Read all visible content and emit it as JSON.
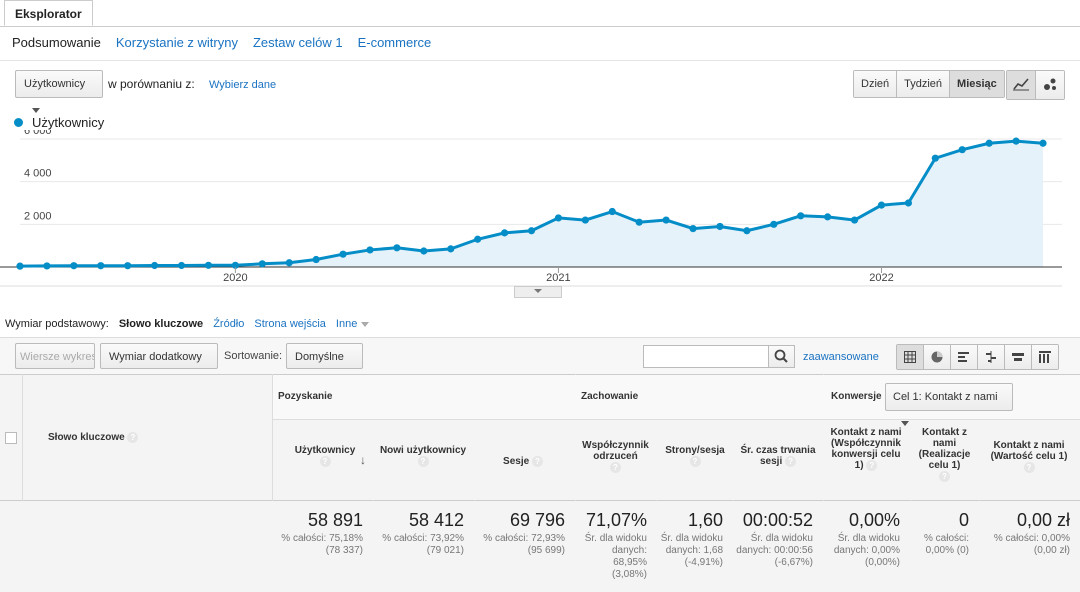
{
  "tab": {
    "label": "Eksplorator"
  },
  "subnav": [
    "Podsumowanie",
    "Korzystanie z witryny",
    "Zestaw celów 1",
    "E-commerce"
  ],
  "controls": {
    "metric_select": "Użytkownicy",
    "compare_label": "w porównaniu z:",
    "compare_link": "Wybierz dane",
    "periods": [
      "Dzień",
      "Tydzień",
      "Miesiąc"
    ],
    "active_period": "Miesiąc"
  },
  "colors": {
    "series": "#058dc7",
    "link": "#1a73c2"
  },
  "chart_data": {
    "type": "area",
    "legend": "Użytkownicy",
    "yticks": [
      "6 000",
      "4 000",
      "2 000"
    ],
    "ylim": [
      0,
      6000
    ],
    "xticks": [
      {
        "label": "2020",
        "index": 8
      },
      {
        "label": "2021",
        "index": 20
      },
      {
        "label": "2022",
        "index": 32
      }
    ],
    "values": [
      40,
      50,
      60,
      60,
      60,
      70,
      70,
      80,
      80,
      150,
      200,
      350,
      600,
      800,
      900,
      750,
      850,
      1300,
      1600,
      1700,
      2300,
      2200,
      2600,
      2100,
      2200,
      1800,
      1900,
      1700,
      2000,
      2400,
      2350,
      2200,
      2900,
      3000,
      5100,
      5500,
      5800,
      5900,
      5800
    ]
  },
  "dimension": {
    "label": "Wymiar podstawowy:",
    "active": "Słowo kluczowe",
    "options": [
      "Źródło",
      "Strona wejścia",
      "Inne"
    ]
  },
  "toolbar": {
    "rows_btn": "Wiersze wykresu",
    "secondary": "Wymiar dodatkowy",
    "sort_label": "Sortowanie:",
    "sort_value": "Domyślne",
    "advanced": "zaawansowane"
  },
  "table": {
    "dim_header": "Słowo kluczowe",
    "groups": {
      "acq": "Pozyskanie",
      "beh": "Zachowanie",
      "conv": "Konwersje",
      "goal_select": "Cel 1: Kontakt z nami"
    },
    "headers": [
      "Użytkownicy",
      "Nowi użytkownicy",
      "Sesje",
      "Współczynnik odrzuceń",
      "Strony/sesja",
      "Śr. czas trwania sesji",
      "Kontakt z nami (Współczynnik konwersji celu 1)",
      "Kontakt z nami (Realizacje celu 1)",
      "Kontakt z nami (Wartość celu 1)"
    ],
    "totals": [
      {
        "value": "58 891",
        "sub1": "% całości: 75,18%",
        "sub2": "(78 337)"
      },
      {
        "value": "58 412",
        "sub1": "% całości: 73,92%",
        "sub2": "(79 021)"
      },
      {
        "value": "69 796",
        "sub1": "% całości: 72,93%",
        "sub2": "(95 699)"
      },
      {
        "value": "71,07%",
        "sub1": "Śr. dla widoku danych: 68,95%",
        "sub2": "(3,08%)"
      },
      {
        "value": "1,60",
        "sub1": "Śr. dla widoku danych: 1,68",
        "sub2": "(-4,91%)"
      },
      {
        "value": "00:00:52",
        "sub1": "Śr. dla widoku danych: 00:00:56",
        "sub2": "(-6,67%)"
      },
      {
        "value": "0,00%",
        "sub1": "Śr. dla widoku danych: 0,00%",
        "sub2": "(0,00%)"
      },
      {
        "value": "0",
        "sub1": "% całości: 0,00% (0)",
        "sub2": ""
      },
      {
        "value": "0,00 zł",
        "sub1": "% całości: 0,00%",
        "sub2": "(0,00 zł)"
      }
    ]
  }
}
